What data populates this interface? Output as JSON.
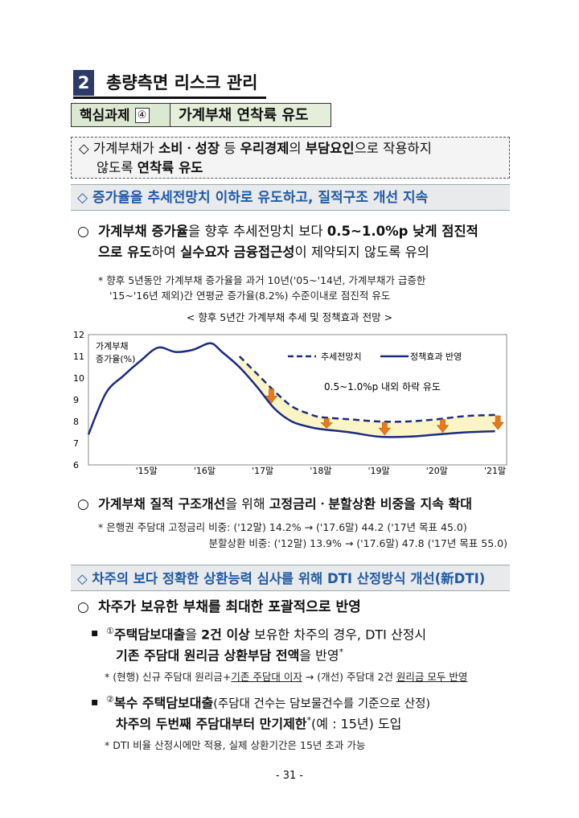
{
  "section": {
    "number": "2",
    "title": "총량측면 리스크 관리"
  },
  "core_task": {
    "label": "핵심과제",
    "number": "④",
    "title": "가계부채 연착륙 유도"
  },
  "goal": {
    "line1_a": "◇ 가계부채가 ",
    "line1_b": "소비ㆍ성장",
    "line1_c": " 등 ",
    "line1_d": "우리경제",
    "line1_e": "의 ",
    "line1_f": "부담요인",
    "line1_g": "으로 작용하지",
    "line2_a": "않도록 ",
    "line2_b": "연착륙 유도"
  },
  "header1": "◇ 증가율을 추세전망치 이하로 유도하고, 질적구조 개선 지속",
  "p1": {
    "bullet": "○",
    "l1_a": "가계부채 증가율",
    "l1_b": "을 향후 추세전망치 보다 ",
    "l1_c": "0.5~1.0%p 낮게 점진적",
    "l2_a": "으로 유도",
    "l2_b": "하여 ",
    "l2_c": "실수요자 금융접근성",
    "l2_d": "이 제약되지 않도록 유의"
  },
  "note1": {
    "l1": "* 향후 5년동안 가계부채 증가율을 과거 10년('05~'14년, 가계부채가 급증한",
    "l2": "'15~'16년 제외)간 연평균 증가율(8.2%) 수준이내로 점진적 유도"
  },
  "chart_caption": "< 향후 5년간 가계부채 추세 및 정책효과 전망 >",
  "chart_data": {
    "type": "line",
    "ylabel_l1": "가계부채",
    "ylabel_l2": "증가율(%)",
    "ylim": [
      6,
      12
    ],
    "yticks": [
      "12",
      "11",
      "10",
      "9",
      "8",
      "7",
      "6"
    ],
    "x_tick_labels": [
      "'15말",
      "'16말",
      "'17말",
      "'18말",
      "'19말",
      "'20말",
      "'21말"
    ],
    "legend": {
      "trend": "추세전망치",
      "policy": "정책효과 반영",
      "placement": "top-right"
    },
    "annotation": "0.5~1.0%p 내외 하락 유도",
    "series": [
      {
        "name": "추세전망치",
        "style": "dashed",
        "x": [
          2016.6,
          2016.9,
          2017.2,
          2017.5,
          2017.8,
          2018.0,
          2018.5,
          2019.0,
          2019.5,
          2020.0,
          2020.5,
          2021.0
        ],
        "y": [
          11.0,
          10.2,
          9.4,
          8.7,
          8.35,
          8.2,
          8.1,
          8.0,
          8.0,
          8.1,
          8.25,
          8.3
        ]
      },
      {
        "name": "정책효과 반영",
        "style": "solid",
        "x": [
          2014.0,
          2014.3,
          2014.6,
          2014.9,
          2015.2,
          2015.5,
          2015.8,
          2016.1,
          2016.3,
          2016.6,
          2016.9,
          2017.2,
          2017.5,
          2017.8,
          2018.0,
          2018.5,
          2019.0,
          2019.5,
          2020.0,
          2020.5,
          2021.0
        ],
        "y": [
          7.4,
          9.3,
          10.1,
          10.8,
          11.4,
          11.2,
          11.3,
          11.6,
          11.2,
          10.5,
          9.6,
          8.6,
          8.0,
          7.75,
          7.65,
          7.5,
          7.3,
          7.3,
          7.4,
          7.5,
          7.55
        ]
      }
    ],
    "arrow_x": [
      2017.15,
      2018.1,
      2019.1,
      2020.1,
      2021.1
    ],
    "colors": {
      "line": "#1c2a80",
      "fill": "#fbf5c6",
      "arrow": "#e87a1e"
    }
  },
  "p2": {
    "bullet": "○",
    "a": "가계부채 질적 구조개선",
    "b": "을 위해 ",
    "c": "고정금리ㆍ분할상환 비중을 지속 확대"
  },
  "note2": {
    "l1": "* 은행권 주담대 고정금리 비중: ('12말) 14.2% → ('17.6말) 44.2 ('17년 목표 45.0)",
    "l2": "분할상환 비중: ('12말) 13.9% → ('17.6말) 47.8 ('17년 목표 55.0)"
  },
  "header2": "◇ 차주의 보다 정확한 상환능력 심사를 위해 DTI 산정방식 개선(新DTI)",
  "p3": {
    "bullet": "○",
    "text": "차주가 보유한 부채를 최대한 포괄적으로 반영"
  },
  "s1": {
    "bullet": "▪",
    "num": "①",
    "l1_a": "주택담보대출",
    "l1_b": "을 ",
    "l1_c": "2건 이상",
    "l1_d": " 보유한 차주의 경우, DTI 산정시",
    "l2_a": "기존 주담대 원리금 상환부담 전액",
    "l2_b": "을 반영",
    "l2_star": "*"
  },
  "note3": {
    "a": "* (현행) 신규 주담대 원리금+",
    "b": "기존 주담대 이자",
    "c": " → (개선) 주담대 2건 ",
    "d": "원리금 모두 반영"
  },
  "s2": {
    "bullet": "▪",
    "num": "②",
    "l1_a": "복수 주택담보대출",
    "l1_b": "(주담대 건수는 담보물건수를 기준으로 산정)",
    "l2_a": "차주의 두번째 주담대부터 만기제한",
    "l2_star": "*",
    "l2_b": "(예 : 15년) 도입"
  },
  "note4": "* DTI 비율 산정시에만 적용, 실제 상환기간은 15년 초과 가능",
  "page_number": "- 31 -"
}
